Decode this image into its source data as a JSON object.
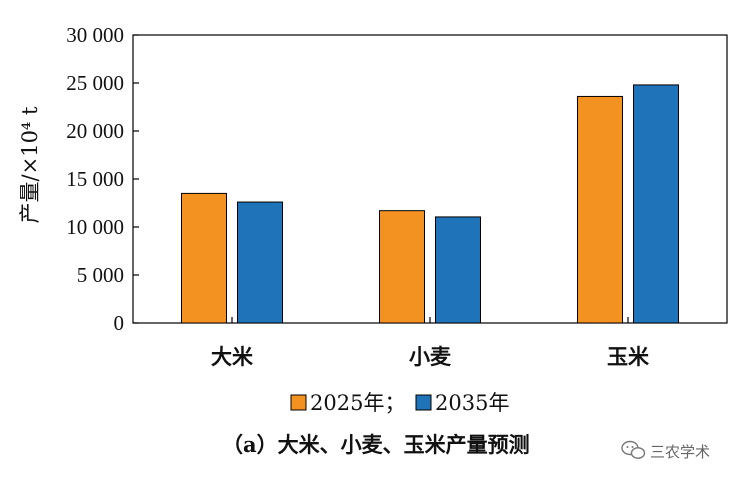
{
  "chart_data": {
    "type": "bar",
    "title": "",
    "ylabel": "产量/×10⁴ t",
    "xlabel": "",
    "categories": [
      "大米",
      "小麦",
      "玉米"
    ],
    "series": [
      {
        "name": "2025年；",
        "color": "#F39220",
        "values": [
          13500,
          11700,
          23600
        ]
      },
      {
        "name": "2035年",
        "color": "#1F73B8",
        "values": [
          12600,
          11050,
          24800
        ]
      }
    ],
    "ylim": [
      0,
      30000
    ],
    "yticks": [
      0,
      5000,
      10000,
      15000,
      20000,
      25000,
      30000
    ],
    "ytick_labels": [
      "0",
      "5 000",
      "10 000",
      "15 000",
      "20 000",
      "25 000",
      "30 000"
    ],
    "grid": false,
    "legend_position": "bottom",
    "caption": "（a）大米、小麦、玉米产量预测"
  },
  "watermark": {
    "text": "三农学术",
    "icon": "wechat-icon"
  }
}
